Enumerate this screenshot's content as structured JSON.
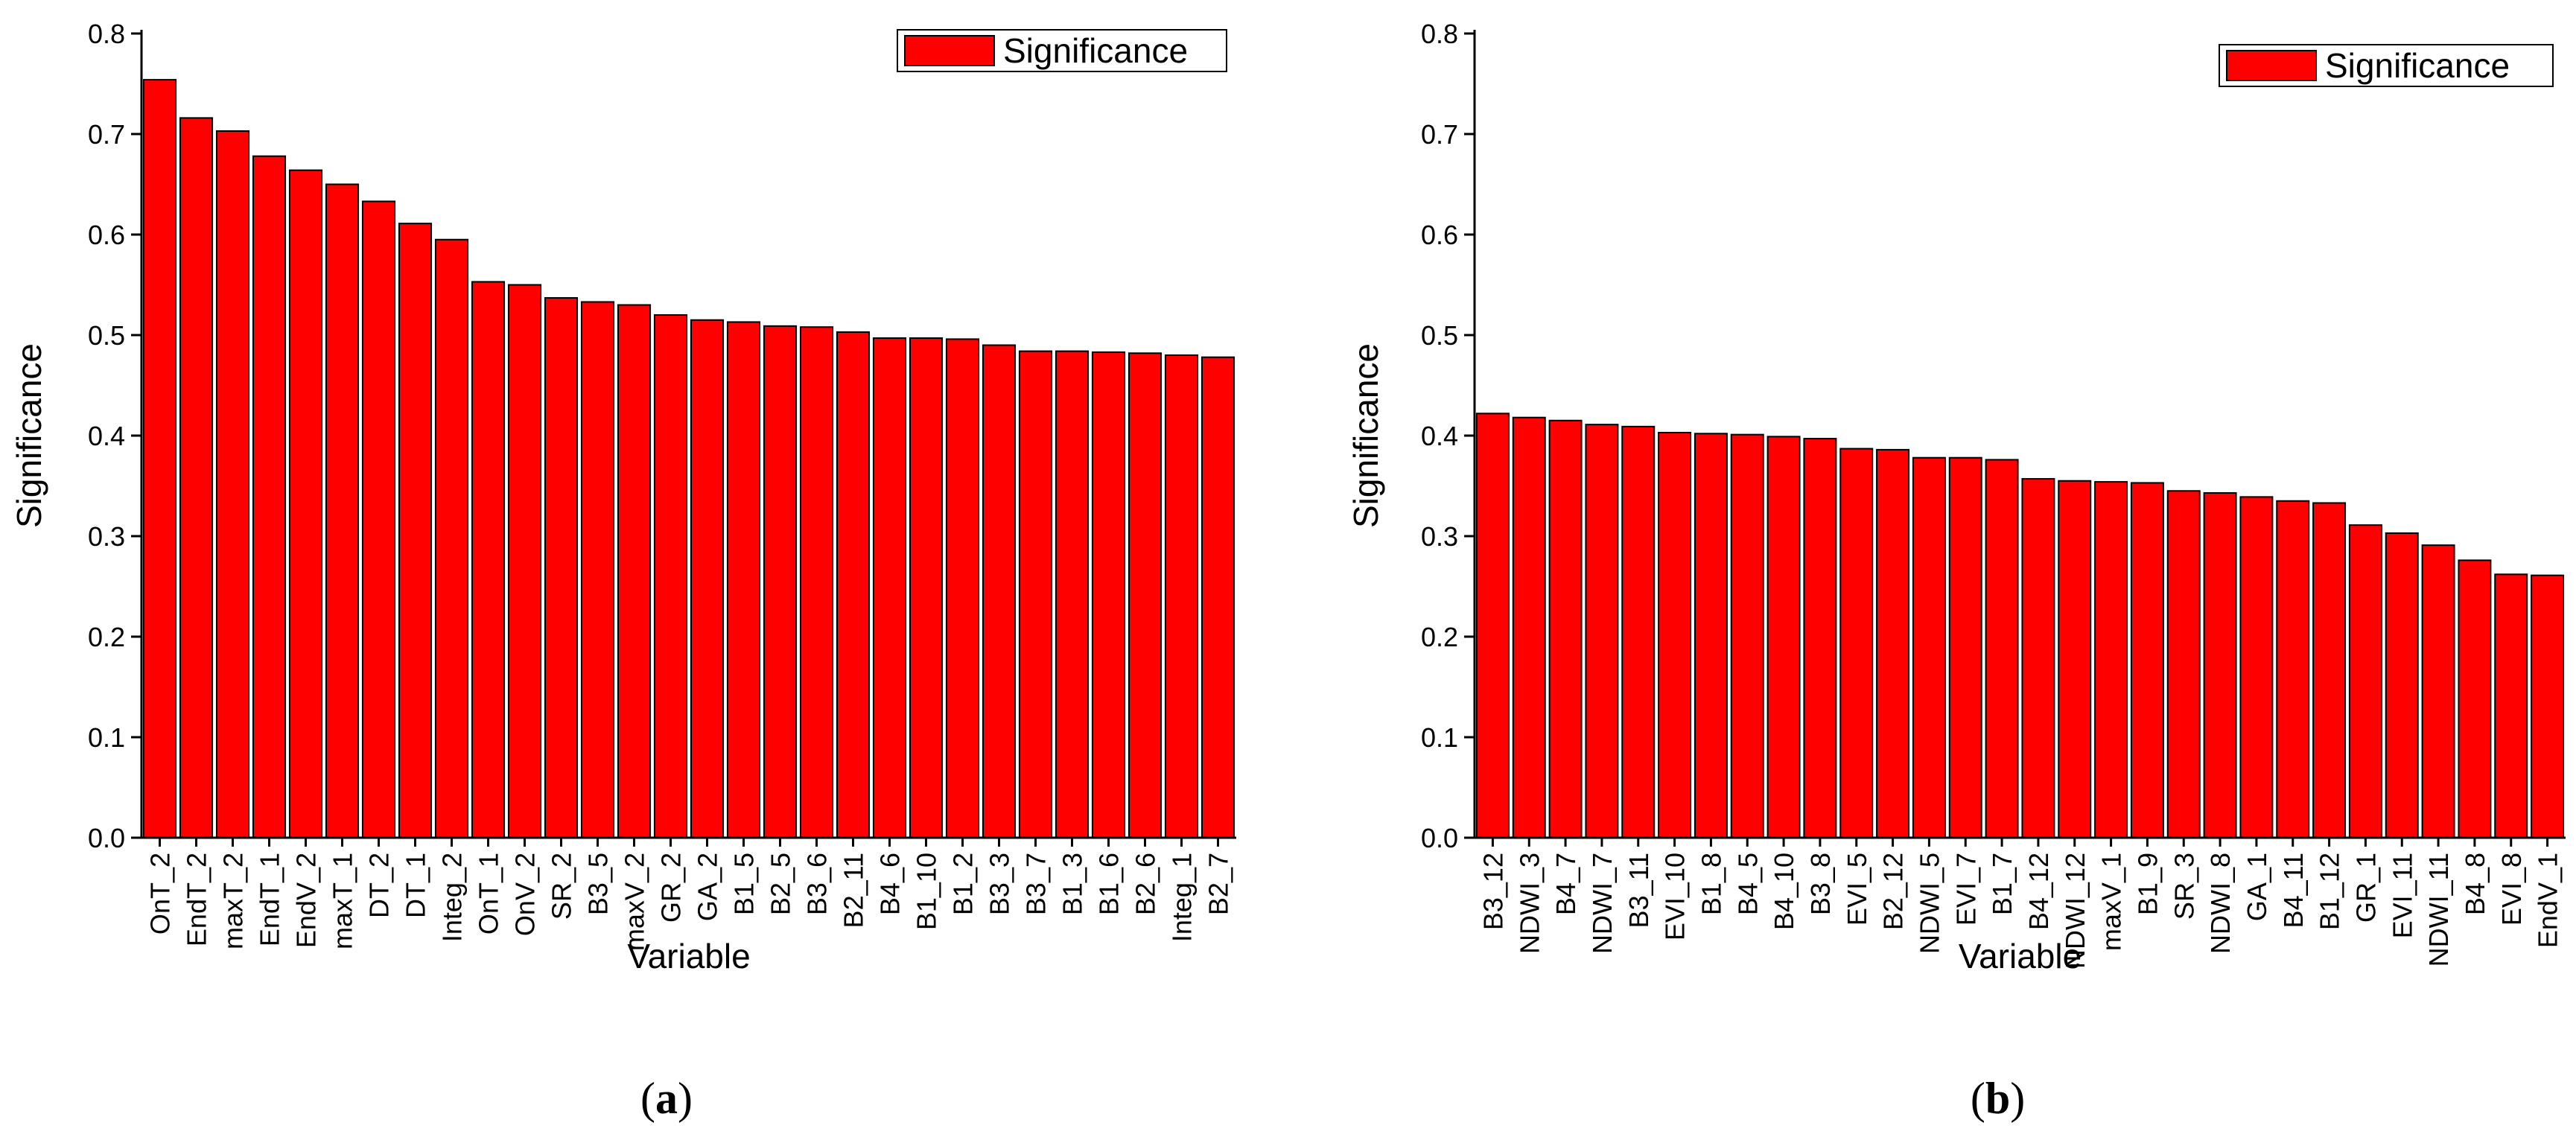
{
  "bar_color": "#ff0000",
  "chart_data": [
    {
      "type": "bar",
      "panel_label": "a",
      "xlabel": "Variable",
      "ylabel": "Significance",
      "ylim": [
        0,
        0.8
      ],
      "yticks": [
        0.0,
        0.1,
        0.2,
        0.3,
        0.4,
        0.5,
        0.6,
        0.7,
        0.8
      ],
      "ytick_labels": [
        "0.0",
        "0.1",
        "0.2",
        "0.3",
        "0.4",
        "0.5",
        "0.6",
        "0.7",
        "0.8"
      ],
      "legend": {
        "label": "Significance",
        "placement": "top-right"
      },
      "grid": false,
      "categories": [
        "OnT_2",
        "EndT_2",
        "maxT_2",
        "EndT_1",
        "EndV_2",
        "maxT_1",
        "DT_2",
        "DT_1",
        "Integ_2",
        "OnT_1",
        "OnV_2",
        "SR_2",
        "B3_5",
        "maxV_2",
        "GR_2",
        "GA_2",
        "B1_5",
        "B2_5",
        "B3_6",
        "B2_11",
        "B4_6",
        "B1_10",
        "B1_2",
        "B3_3",
        "B3_7",
        "B1_3",
        "B1_6",
        "B2_6",
        "Integ_1",
        "B2_7"
      ],
      "series": [
        {
          "name": "Significance",
          "values": [
            0.754,
            0.716,
            0.703,
            0.678,
            0.664,
            0.65,
            0.633,
            0.611,
            0.595,
            0.553,
            0.55,
            0.537,
            0.533,
            0.53,
            0.52,
            0.515,
            0.513,
            0.509,
            0.508,
            0.503,
            0.497,
            0.497,
            0.496,
            0.49,
            0.484,
            0.484,
            0.483,
            0.482,
            0.48,
            0.478
          ]
        }
      ]
    },
    {
      "type": "bar",
      "panel_label": "b",
      "xlabel": "Variable",
      "ylabel": "Significance",
      "ylim": [
        0,
        0.8
      ],
      "yticks": [
        0.0,
        0.1,
        0.2,
        0.3,
        0.4,
        0.5,
        0.6,
        0.7,
        0.8
      ],
      "ytick_labels": [
        "0.0",
        "0.1",
        "0.2",
        "0.3",
        "0.4",
        "0.5",
        "0.6",
        "0.7",
        "0.8"
      ],
      "legend": {
        "label": "Significance",
        "placement": "top-right"
      },
      "grid": false,
      "categories": [
        "B3_12",
        "NDWI_3",
        "B4_7",
        "NDWI_7",
        "B3_11",
        "EVI_10",
        "B1_8",
        "B4_5",
        "B4_10",
        "B3_8",
        "EVI_5",
        "B2_12",
        "NDWI_5",
        "EVI_7",
        "B1_7",
        "B4_12",
        "NDWI_12",
        "maxV_1",
        "B1_9",
        "SR_3",
        "NDWI_8",
        "GA_1",
        "B4_11",
        "B1_12",
        "GR_1",
        "EVI_11",
        "NDWI_11",
        "B4_8",
        "EVI_8",
        "EndV_1"
      ],
      "series": [
        {
          "name": "Significance",
          "values": [
            0.422,
            0.418,
            0.415,
            0.411,
            0.409,
            0.403,
            0.402,
            0.401,
            0.399,
            0.397,
            0.387,
            0.386,
            0.378,
            0.378,
            0.376,
            0.357,
            0.355,
            0.354,
            0.353,
            0.345,
            0.343,
            0.339,
            0.335,
            0.333,
            0.311,
            0.303,
            0.291,
            0.276,
            0.262,
            0.261
          ]
        }
      ]
    }
  ]
}
